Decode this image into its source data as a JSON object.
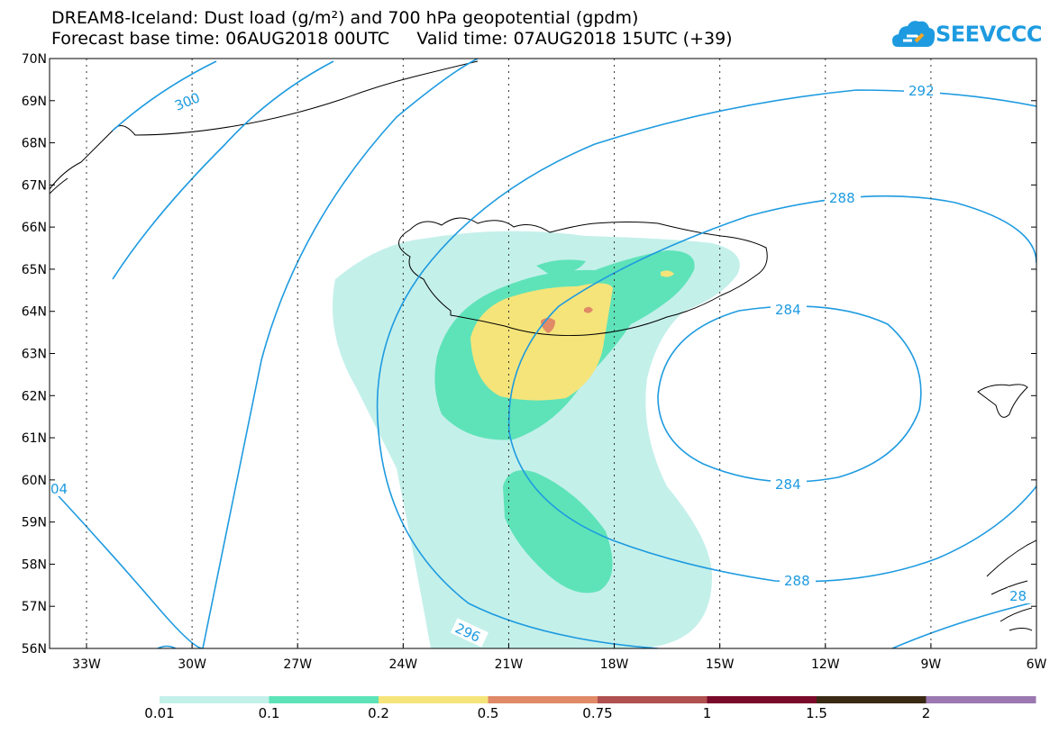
{
  "title": {
    "line1": "DREAM8-Iceland: Dust load (g/m²) and 700 hPa geopotential (gpdm)",
    "line2_left": "Forecast base time: 06AUG2018 00UTC",
    "line2_right": "Valid time: 07AUG2018 15UTC (+39)"
  },
  "logo": {
    "text": "SEEVCCC",
    "color": "#1e9be0",
    "icon": "cloud-icon"
  },
  "map": {
    "lat_labels": [
      "70N",
      "69N",
      "68N",
      "67N",
      "66N",
      "65N",
      "64N",
      "63N",
      "62N",
      "61N",
      "60N",
      "59N",
      "58N",
      "57N",
      "56N"
    ],
    "lon_labels": [
      "33W",
      "30W",
      "27W",
      "24W",
      "21W",
      "18W",
      "15W",
      "12W",
      "9W",
      "6W"
    ],
    "contour_labels": [
      "300",
      "292",
      "288",
      "284",
      "284",
      "288",
      "296",
      "04",
      "28"
    ],
    "contour_color": "#1e9be0"
  },
  "colorbar": {
    "labels": [
      "0.01",
      "0.1",
      "0.2",
      "0.5",
      "0.75",
      "1",
      "1.5",
      "2"
    ],
    "colors": [
      "#c4f0ea",
      "#5ee3b8",
      "#f5e47a",
      "#e08a68",
      "#b05050",
      "#7a0a2a",
      "#3a2a14",
      "#9b78b0"
    ]
  }
}
